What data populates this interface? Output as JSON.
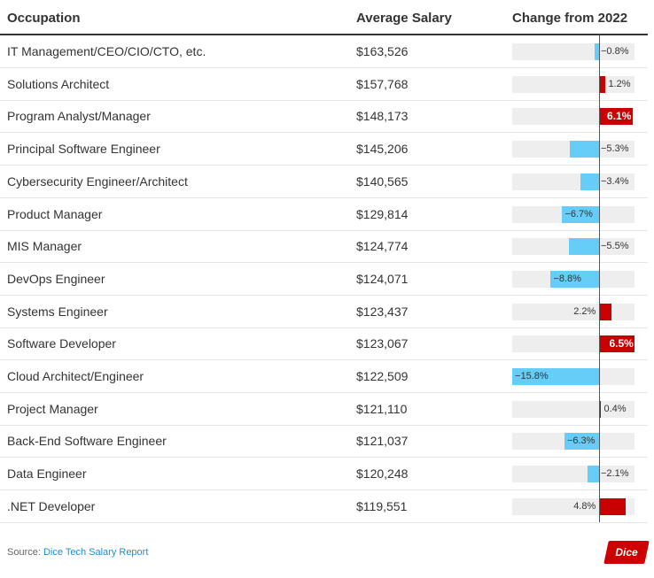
{
  "chart_data": {
    "type": "table",
    "columns": [
      "Occupation",
      "Average Salary",
      "Change from 2022"
    ],
    "axis_range": [
      -16,
      7
    ],
    "rows": [
      {
        "occupation": "IT Management/CEO/CIO/CTO, etc.",
        "salary": "$163,526",
        "change": -0.8,
        "label": "−0.8%"
      },
      {
        "occupation": "Solutions Architect",
        "salary": "$157,768",
        "change": 1.2,
        "label": "1.2%"
      },
      {
        "occupation": "Program Analyst/Manager",
        "salary": "$148,173",
        "change": 6.1,
        "label": "6.1%"
      },
      {
        "occupation": "Principal Software Engineer",
        "salary": "$145,206",
        "change": -5.3,
        "label": "−5.3%"
      },
      {
        "occupation": "Cybersecurity Engineer/Architect",
        "salary": "$140,565",
        "change": -3.4,
        "label": "−3.4%"
      },
      {
        "occupation": "Product Manager",
        "salary": "$129,814",
        "change": -6.7,
        "label": "−6.7%"
      },
      {
        "occupation": "MIS Manager",
        "salary": "$124,774",
        "change": -5.5,
        "label": "−5.5%"
      },
      {
        "occupation": "DevOps Engineer",
        "salary": "$124,071",
        "change": -8.8,
        "label": "−8.8%"
      },
      {
        "occupation": "Systems Engineer",
        "salary": "$123,437",
        "change": 2.2,
        "label": "2.2%"
      },
      {
        "occupation": "Software Developer",
        "salary": "$123,067",
        "change": 6.5,
        "label": "6.5%"
      },
      {
        "occupation": "Cloud Architect/Engineer",
        "salary": "$122,509",
        "change": -15.8,
        "label": "−15.8%"
      },
      {
        "occupation": "Project Manager",
        "salary": "$121,110",
        "change": 0.4,
        "label": "0.4%"
      },
      {
        "occupation": "Back-End Software Engineer",
        "salary": "$121,037",
        "change": -6.3,
        "label": "−6.3%"
      },
      {
        "occupation": "Data Engineer",
        "salary": "$120,248",
        "change": -2.1,
        "label": "−2.1%"
      },
      {
        "occupation": ".NET Developer",
        "salary": "$119,551",
        "change": 4.8,
        "label": "4.8%"
      }
    ],
    "colors": {
      "negative": "#66ccf8",
      "positive": "#c90000",
      "track": "#eeeeee"
    }
  },
  "footer": {
    "source_prefix": "Source:",
    "source_link": "Dice Tech Salary Report",
    "logo_text": "Dice"
  }
}
